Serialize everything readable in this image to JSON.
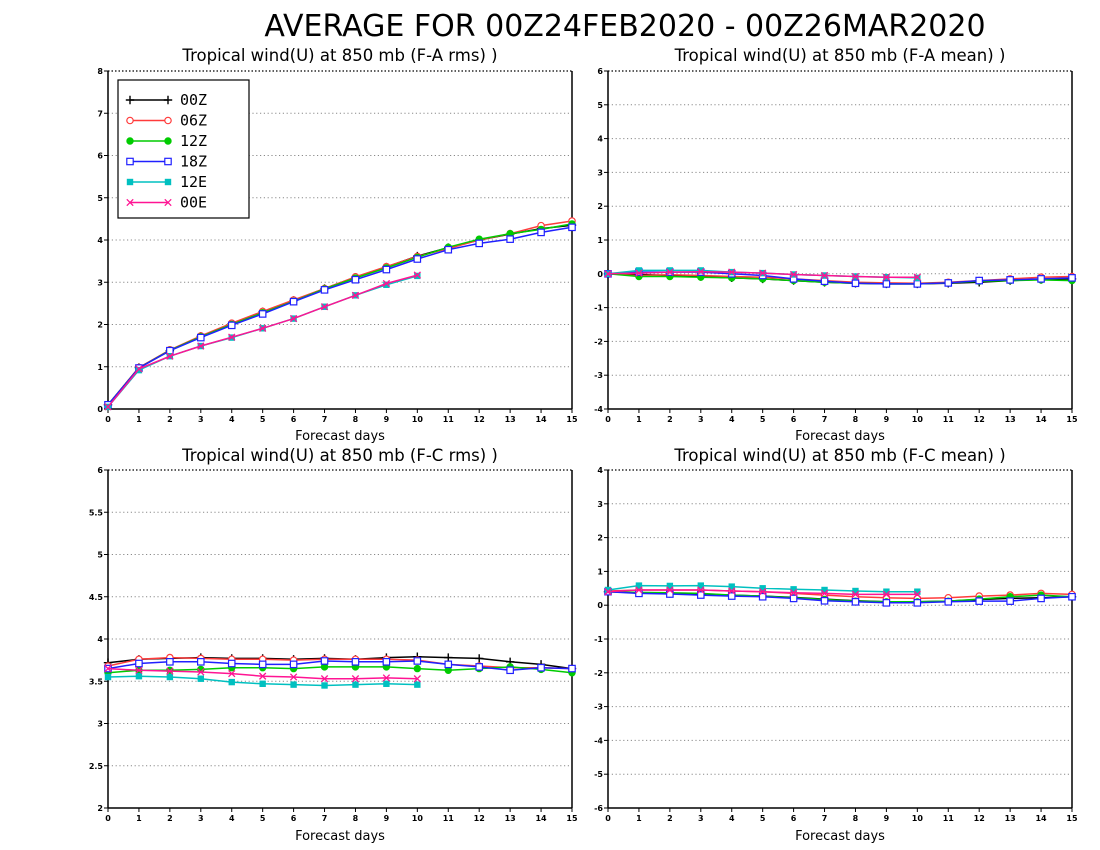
{
  "title": "AVERAGE FOR 00Z24FEB2020 - 00Z26MAR2020",
  "legend": [
    {
      "label": "00Z",
      "color": "#000000",
      "marker": "plus"
    },
    {
      "label": "06Z",
      "color": "#ff3b3b",
      "marker": "open-circle"
    },
    {
      "label": "12Z",
      "color": "#00cc00",
      "marker": "filled-circle"
    },
    {
      "label": "18Z",
      "color": "#2020ff",
      "marker": "open-square"
    },
    {
      "label": "12E",
      "color": "#00c0c0",
      "marker": "filled-square"
    },
    {
      "label": "00E",
      "color": "#ff1493",
      "marker": "x"
    }
  ],
  "chart_data": [
    {
      "type": "line",
      "title": "Tropical wind(U) at 850 mb (F-A rms) )",
      "xlabel": "Forecast days",
      "ylabel": "",
      "xlim": [
        0,
        15
      ],
      "ylim": [
        0,
        8
      ],
      "yticks": [
        0,
        1,
        2,
        3,
        4,
        5,
        6,
        7,
        8
      ],
      "xticks": [
        0,
        1,
        2,
        3,
        4,
        5,
        6,
        7,
        8,
        9,
        10,
        11,
        12,
        13,
        14,
        15
      ],
      "grid": true,
      "legend": true,
      "series": [
        {
          "name": "00Z",
          "x": [
            0,
            1,
            2,
            3,
            4,
            5,
            6,
            7,
            8,
            9,
            10,
            11,
            12,
            13,
            14,
            15
          ],
          "values": [
            0.1,
            0.98,
            1.38,
            1.72,
            2.02,
            2.3,
            2.57,
            2.85,
            3.12,
            3.36,
            3.62,
            3.82,
            4.0,
            4.14,
            4.27,
            4.35
          ]
        },
        {
          "name": "06Z",
          "x": [
            0,
            1,
            2,
            3,
            4,
            5,
            6,
            7,
            8,
            9,
            10,
            11,
            12,
            13,
            14,
            15
          ],
          "values": [
            0.1,
            0.98,
            1.4,
            1.73,
            2.03,
            2.31,
            2.58,
            2.85,
            3.13,
            3.37,
            3.61,
            3.8,
            4.0,
            4.15,
            4.34,
            4.45
          ]
        },
        {
          "name": "12Z",
          "x": [
            0,
            1,
            2,
            3,
            4,
            5,
            6,
            7,
            8,
            9,
            10,
            11,
            12,
            13,
            14,
            15
          ],
          "values": [
            0.1,
            0.97,
            1.39,
            1.71,
            2.0,
            2.28,
            2.55,
            2.84,
            3.1,
            3.34,
            3.59,
            3.83,
            4.02,
            4.15,
            4.25,
            4.38
          ]
        },
        {
          "name": "18Z",
          "x": [
            0,
            1,
            2,
            3,
            4,
            5,
            6,
            7,
            8,
            9,
            10,
            11,
            12,
            13,
            14,
            15
          ],
          "values": [
            0.1,
            0.97,
            1.38,
            1.69,
            1.98,
            2.25,
            2.54,
            2.82,
            3.06,
            3.3,
            3.55,
            3.77,
            3.92,
            4.02,
            4.18,
            4.3
          ]
        },
        {
          "name": "12E",
          "x": [
            0,
            1,
            2,
            3,
            4,
            5,
            6,
            7,
            8,
            9,
            10
          ],
          "values": [
            0.05,
            0.92,
            1.25,
            1.49,
            1.69,
            1.91,
            2.14,
            2.42,
            2.69,
            2.94,
            3.15
          ]
        },
        {
          "name": "00E",
          "x": [
            0,
            1,
            2,
            3,
            4,
            5,
            6,
            7,
            8,
            9,
            10
          ],
          "values": [
            0.05,
            0.95,
            1.25,
            1.49,
            1.7,
            1.91,
            2.14,
            2.42,
            2.69,
            2.97,
            3.17
          ]
        }
      ]
    },
    {
      "type": "line",
      "title": "Tropical wind(U) at 850 mb (F-A mean) )",
      "xlabel": "Forecast days",
      "ylabel": "",
      "xlim": [
        0,
        15
      ],
      "ylim": [
        -4,
        6
      ],
      "yticks": [
        -4,
        -3,
        -2,
        -1,
        0,
        1,
        2,
        3,
        4,
        5,
        6
      ],
      "xticks": [
        0,
        1,
        2,
        3,
        4,
        5,
        6,
        7,
        8,
        9,
        10,
        11,
        12,
        13,
        14,
        15
      ],
      "grid": true,
      "legend": false,
      "series": [
        {
          "name": "00Z",
          "x": [
            0,
            1,
            2,
            3,
            4,
            5,
            6,
            7,
            8,
            9,
            10,
            11,
            12,
            13,
            14,
            15
          ],
          "values": [
            0.0,
            -0.02,
            -0.05,
            -0.08,
            -0.12,
            -0.15,
            -0.2,
            -0.25,
            -0.28,
            -0.3,
            -0.3,
            -0.28,
            -0.25,
            -0.2,
            -0.17,
            -0.15
          ]
        },
        {
          "name": "06Z",
          "x": [
            0,
            1,
            2,
            3,
            4,
            5,
            6,
            7,
            8,
            9,
            10,
            11,
            12,
            13,
            14,
            15
          ],
          "values": [
            0.0,
            -0.05,
            -0.03,
            -0.05,
            -0.08,
            -0.1,
            -0.15,
            -0.2,
            -0.25,
            -0.27,
            -0.28,
            -0.25,
            -0.2,
            -0.15,
            -0.1,
            -0.08
          ]
        },
        {
          "name": "12Z",
          "x": [
            0,
            1,
            2,
            3,
            4,
            5,
            6,
            7,
            8,
            9,
            10,
            11,
            12,
            13,
            14,
            15
          ],
          "values": [
            0.0,
            -0.08,
            -0.08,
            -0.1,
            -0.12,
            -0.15,
            -0.2,
            -0.25,
            -0.28,
            -0.3,
            -0.3,
            -0.27,
            -0.22,
            -0.2,
            -0.18,
            -0.2
          ]
        },
        {
          "name": "18Z",
          "x": [
            0,
            1,
            2,
            3,
            4,
            5,
            6,
            7,
            8,
            9,
            10,
            11,
            12,
            13,
            14,
            15
          ],
          "values": [
            0.0,
            0.05,
            0.05,
            0.05,
            0.0,
            -0.05,
            -0.15,
            -0.22,
            -0.28,
            -0.3,
            -0.3,
            -0.27,
            -0.2,
            -0.18,
            -0.15,
            -0.12
          ]
        },
        {
          "name": "12E",
          "x": [
            0,
            1,
            2,
            3,
            4,
            5,
            6,
            7,
            8,
            9,
            10
          ],
          "values": [
            0.0,
            0.1,
            0.1,
            0.1,
            0.05,
            0.02,
            -0.02,
            -0.05,
            -0.08,
            -0.1,
            -0.12
          ]
        },
        {
          "name": "00E",
          "x": [
            0,
            1,
            2,
            3,
            4,
            5,
            6,
            7,
            8,
            9,
            10
          ],
          "values": [
            0.0,
            0.02,
            0.05,
            0.06,
            0.05,
            0.02,
            -0.02,
            -0.05,
            -0.08,
            -0.1,
            -0.1
          ]
        }
      ]
    },
    {
      "type": "line",
      "title": "Tropical wind(U) at 850 mb (F-C rms) )",
      "xlabel": "Forecast days",
      "ylabel": "",
      "xlim": [
        0,
        15
      ],
      "ylim": [
        2,
        6
      ],
      "yticks": [
        2,
        2.5,
        3,
        3.5,
        4,
        4.5,
        5,
        5.5,
        6
      ],
      "xticks": [
        0,
        1,
        2,
        3,
        4,
        5,
        6,
        7,
        8,
        9,
        10,
        11,
        12,
        13,
        14,
        15
      ],
      "grid": true,
      "legend": false,
      "series": [
        {
          "name": "00Z",
          "x": [
            0,
            1,
            2,
            3,
            4,
            5,
            6,
            7,
            8,
            9,
            10,
            11,
            12,
            13,
            14,
            15
          ],
          "values": [
            3.72,
            3.76,
            3.77,
            3.78,
            3.77,
            3.77,
            3.76,
            3.77,
            3.76,
            3.78,
            3.79,
            3.78,
            3.77,
            3.73,
            3.7,
            3.65
          ]
        },
        {
          "name": "06Z",
          "x": [
            0,
            1,
            2,
            3,
            4,
            5,
            6,
            7,
            8,
            9,
            10,
            11,
            12,
            13,
            14,
            15
          ],
          "values": [
            3.68,
            3.76,
            3.78,
            3.77,
            3.76,
            3.76,
            3.75,
            3.76,
            3.76,
            3.76,
            3.75,
            3.7,
            3.68,
            3.66,
            3.66,
            3.65
          ]
        },
        {
          "name": "12Z",
          "x": [
            0,
            1,
            2,
            3,
            4,
            5,
            6,
            7,
            8,
            9,
            10,
            11,
            12,
            13,
            14,
            15
          ],
          "values": [
            3.6,
            3.63,
            3.63,
            3.64,
            3.66,
            3.66,
            3.65,
            3.67,
            3.67,
            3.67,
            3.65,
            3.63,
            3.65,
            3.67,
            3.64,
            3.6
          ]
        },
        {
          "name": "18Z",
          "x": [
            0,
            1,
            2,
            3,
            4,
            5,
            6,
            7,
            8,
            9,
            10,
            11,
            12,
            13,
            14,
            15
          ],
          "values": [
            3.65,
            3.71,
            3.73,
            3.73,
            3.71,
            3.7,
            3.7,
            3.74,
            3.73,
            3.73,
            3.74,
            3.7,
            3.67,
            3.63,
            3.66,
            3.65
          ]
        },
        {
          "name": "12E",
          "x": [
            0,
            1,
            2,
            3,
            4,
            5,
            6,
            7,
            8,
            9,
            10
          ],
          "values": [
            3.55,
            3.56,
            3.55,
            3.53,
            3.49,
            3.47,
            3.46,
            3.45,
            3.46,
            3.47,
            3.46
          ]
        },
        {
          "name": "00E",
          "x": [
            0,
            1,
            2,
            3,
            4,
            5,
            6,
            7,
            8,
            9,
            10
          ],
          "values": [
            3.65,
            3.63,
            3.62,
            3.61,
            3.59,
            3.56,
            3.55,
            3.53,
            3.53,
            3.54,
            3.53
          ]
        }
      ]
    },
    {
      "type": "line",
      "title": "Tropical wind(U) at 850 mb (F-C mean) )",
      "xlabel": "Forecast days",
      "ylabel": "",
      "xlim": [
        0,
        15
      ],
      "ylim": [
        -6,
        4
      ],
      "yticks": [
        -6,
        -5,
        -4,
        -3,
        -2,
        -1,
        0,
        1,
        2,
        3,
        4
      ],
      "xticks": [
        0,
        1,
        2,
        3,
        4,
        5,
        6,
        7,
        8,
        9,
        10,
        11,
        12,
        13,
        14,
        15
      ],
      "grid": true,
      "legend": false,
      "series": [
        {
          "name": "00Z",
          "x": [
            0,
            1,
            2,
            3,
            4,
            5,
            6,
            7,
            8,
            9,
            10,
            11,
            12,
            13,
            14,
            15
          ],
          "values": [
            0.4,
            0.37,
            0.35,
            0.33,
            0.3,
            0.27,
            0.23,
            0.18,
            0.13,
            0.1,
            0.1,
            0.12,
            0.17,
            0.2,
            0.22,
            0.25
          ]
        },
        {
          "name": "06Z",
          "x": [
            0,
            1,
            2,
            3,
            4,
            5,
            6,
            7,
            8,
            9,
            10,
            11,
            12,
            13,
            14,
            15
          ],
          "values": [
            0.42,
            0.45,
            0.45,
            0.45,
            0.42,
            0.4,
            0.35,
            0.3,
            0.25,
            0.22,
            0.2,
            0.22,
            0.27,
            0.3,
            0.35,
            0.32
          ]
        },
        {
          "name": "12Z",
          "x": [
            0,
            1,
            2,
            3,
            4,
            5,
            6,
            7,
            8,
            9,
            10,
            11,
            12,
            13,
            14,
            15
          ],
          "values": [
            0.4,
            0.38,
            0.37,
            0.35,
            0.3,
            0.27,
            0.22,
            0.17,
            0.12,
            0.1,
            0.1,
            0.12,
            0.18,
            0.25,
            0.3,
            0.25
          ]
        },
        {
          "name": "18Z",
          "x": [
            0,
            1,
            2,
            3,
            4,
            5,
            6,
            7,
            8,
            9,
            10,
            11,
            12,
            13,
            14,
            15
          ],
          "values": [
            0.4,
            0.35,
            0.33,
            0.3,
            0.27,
            0.25,
            0.2,
            0.13,
            0.1,
            0.07,
            0.07,
            0.1,
            0.12,
            0.12,
            0.2,
            0.25
          ]
        },
        {
          "name": "12E",
          "x": [
            0,
            1,
            2,
            3,
            4,
            5,
            6,
            7,
            8,
            9,
            10
          ],
          "values": [
            0.45,
            0.58,
            0.57,
            0.58,
            0.55,
            0.5,
            0.47,
            0.45,
            0.42,
            0.4,
            0.4
          ]
        },
        {
          "name": "00E",
          "x": [
            0,
            1,
            2,
            3,
            4,
            5,
            6,
            7,
            8,
            9,
            10
          ],
          "values": [
            0.4,
            0.45,
            0.45,
            0.45,
            0.42,
            0.4,
            0.37,
            0.35,
            0.32,
            0.32,
            0.32
          ]
        }
      ]
    }
  ]
}
